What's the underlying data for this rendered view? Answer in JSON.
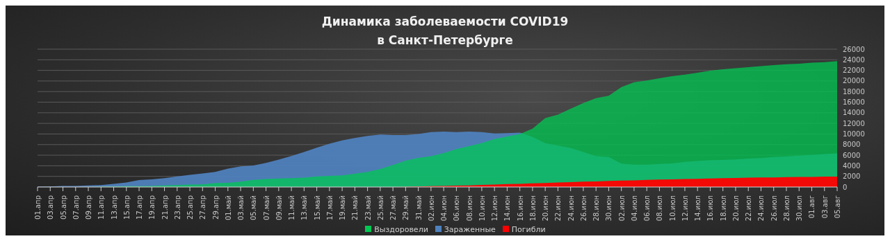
{
  "chart_data": {
    "type": "area",
    "title": "Динамика заболеваемости COVID19\nв Санкт-Петербурге",
    "categories": [
      "01.апр",
      "03.апр",
      "05.апр",
      "07.апр",
      "09.апр",
      "11.апр",
      "13.апр",
      "15.апр",
      "17.апр",
      "19.апр",
      "21.апр",
      "23.апр",
      "25.апр",
      "27.апр",
      "29.апр",
      "01.май",
      "03.май",
      "05.май",
      "07.май",
      "09.май",
      "11.май",
      "13.май",
      "15.май",
      "17.май",
      "19.май",
      "21.май",
      "23.май",
      "25.май",
      "27.май",
      "29.май",
      "31.май",
      "02.июн",
      "04.июн",
      "06.июн",
      "08.июн",
      "10.июн",
      "12.июн",
      "14.июн",
      "16.июн",
      "18.июн",
      "20.июн",
      "22.июн",
      "24.июн",
      "26.июн",
      "28.июн",
      "30.июн",
      "02.июл",
      "04.июл",
      "06.июл",
      "08.июл",
      "10.июл",
      "12.июл",
      "14.июл",
      "16.июл",
      "18.июл",
      "20.июл",
      "22.июл",
      "24.июл",
      "26.июл",
      "28.июл",
      "30.июл",
      "01.авг",
      "03.авг",
      "05.авг"
    ],
    "series": [
      {
        "name": "Зараженные",
        "color": "#4f81bd",
        "values": [
          50,
          100,
          200,
          200,
          300,
          350,
          600,
          850,
          1300,
          1450,
          1650,
          2000,
          2300,
          2550,
          2850,
          3450,
          3900,
          4050,
          4550,
          5150,
          5850,
          6600,
          7400,
          8150,
          8800,
          9250,
          9650,
          9900,
          9800,
          9800,
          10000,
          10350,
          10450,
          10350,
          10450,
          10350,
          10100,
          10150,
          10250,
          9450,
          8250,
          7800,
          7350,
          6600,
          5800,
          5650,
          4400,
          4200,
          4200,
          4350,
          4450,
          4750,
          4900,
          5050,
          5100,
          5200,
          5350,
          5450,
          5650,
          5750,
          5900,
          6050,
          6200,
          6350
        ]
      },
      {
        "name": "Выздоровели",
        "color": "#00c853",
        "values": [
          0,
          0,
          0,
          0,
          0,
          50,
          100,
          150,
          150,
          200,
          300,
          350,
          450,
          500,
          750,
          800,
          1000,
          1350,
          1500,
          1600,
          1650,
          1750,
          2000,
          2100,
          2200,
          2500,
          2850,
          3400,
          4150,
          4950,
          5500,
          5800,
          6400,
          7150,
          7700,
          8300,
          9050,
          9550,
          10000,
          11000,
          13000,
          13650,
          14750,
          15850,
          16750,
          17200,
          18850,
          19750,
          20100,
          20500,
          20900,
          21200,
          21550,
          21950,
          22200,
          22400,
          22600,
          22800,
          23000,
          23150,
          23250,
          23450,
          23550,
          23750
        ]
      },
      {
        "name": "Погибли",
        "color": "#ff0000",
        "values": [
          0,
          0,
          0,
          0,
          0,
          0,
          0,
          0,
          0,
          0,
          0,
          0,
          0,
          0,
          0,
          0,
          0,
          0,
          0,
          0,
          0,
          0,
          0,
          0,
          0,
          0,
          0,
          0,
          0,
          30,
          100,
          150,
          200,
          250,
          300,
          400,
          450,
          550,
          600,
          700,
          750,
          850,
          900,
          1000,
          1050,
          1150,
          1200,
          1250,
          1350,
          1400,
          1450,
          1500,
          1550,
          1600,
          1650,
          1700,
          1750,
          1800,
          1800,
          1850,
          1900,
          1900,
          1950,
          1950
        ]
      }
    ],
    "ylim": [
      0,
      26000
    ],
    "yticks": [
      0,
      2000,
      4000,
      6000,
      8000,
      10000,
      12000,
      14000,
      16000,
      18000,
      20000,
      22000,
      24000,
      26000
    ],
    "grid": "y",
    "legend": "bottom"
  }
}
